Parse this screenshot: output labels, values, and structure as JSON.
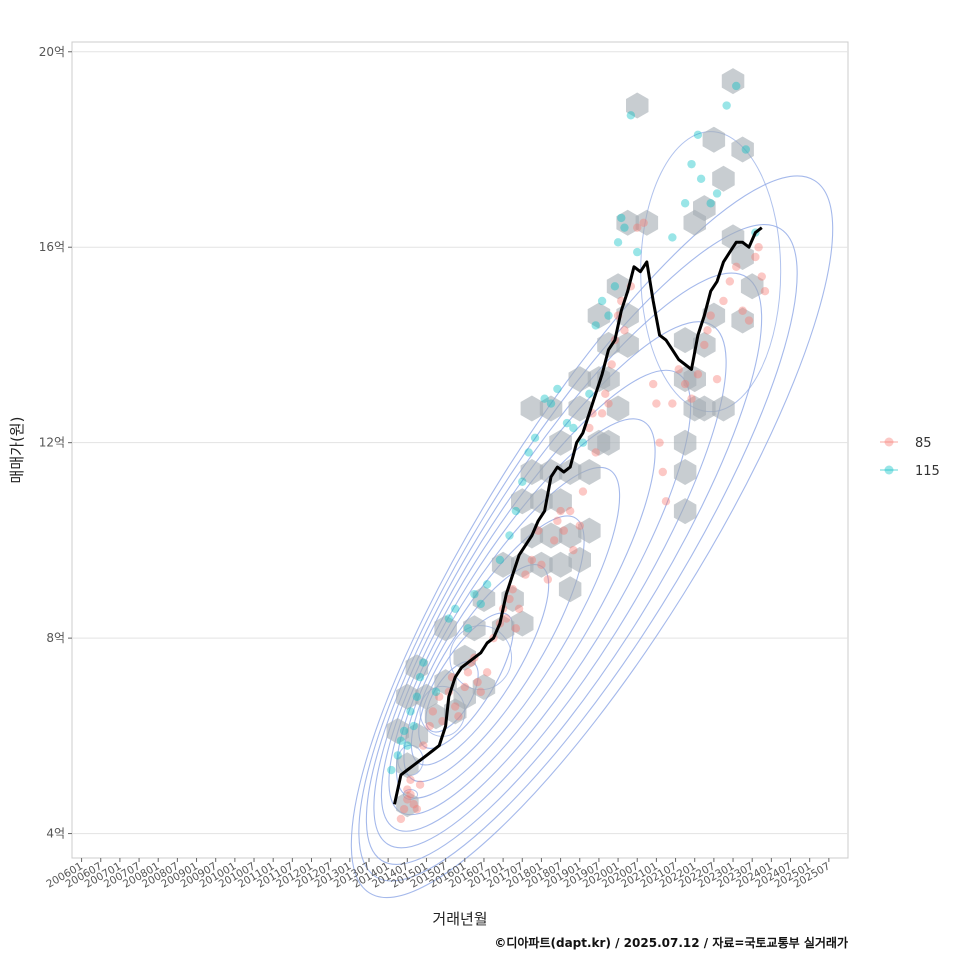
{
  "chart_data": {
    "type": "scatter",
    "xlabel": "거래년월",
    "ylabel": "매매가(원)",
    "caption": "©디아파트(dapt.kr) / 2025.07.12 / 자료=국토교통부 실거래가",
    "y_ticks": [
      {
        "value": 4,
        "label": "4억"
      },
      {
        "value": 8,
        "label": "8억"
      },
      {
        "value": 12,
        "label": "12억"
      },
      {
        "value": 16,
        "label": "16억"
      },
      {
        "value": 20,
        "label": "20억"
      }
    ],
    "ylim": [
      3.5,
      20.2
    ],
    "x_ticks": [
      "200601",
      "200607",
      "200701",
      "200707",
      "200801",
      "200807",
      "200901",
      "200907",
      "201001",
      "201007",
      "201101",
      "201107",
      "201201",
      "201207",
      "201301",
      "201307",
      "201401",
      "201407",
      "201501",
      "201507",
      "201601",
      "201607",
      "201701",
      "201707",
      "201801",
      "201807",
      "201901",
      "201907",
      "202001",
      "202007",
      "202101",
      "202107",
      "202201",
      "202207",
      "202301",
      "202307",
      "202401",
      "202407",
      "202501",
      "202507"
    ],
    "x_range": [
      "2005-10",
      "2026-01"
    ],
    "grid": true,
    "legend_position": "right",
    "legend": [
      {
        "name": "85",
        "color": "#F8766D"
      },
      {
        "name": "115",
        "color": "#00BFC4"
      }
    ],
    "colors": {
      "hexbin": "#a3abb3",
      "density_contour": "#8fa8e6",
      "median_line": "#000000",
      "grid": "#e3e3e3",
      "panel_border": "#cccccc"
    },
    "median_line": [
      [
        "2014-03",
        4.6
      ],
      [
        "2014-05",
        5.2
      ],
      [
        "2014-07",
        5.3
      ],
      [
        "2014-09",
        5.4
      ],
      [
        "2014-11",
        5.5
      ],
      [
        "2015-01",
        5.6
      ],
      [
        "2015-03",
        5.7
      ],
      [
        "2015-05",
        5.8
      ],
      [
        "2015-07",
        6.2
      ],
      [
        "2015-08",
        6.8
      ],
      [
        "2015-10",
        7.2
      ],
      [
        "2015-12",
        7.4
      ],
      [
        "2016-02",
        7.5
      ],
      [
        "2016-04",
        7.6
      ],
      [
        "2016-06",
        7.7
      ],
      [
        "2016-08",
        7.9
      ],
      [
        "2016-10",
        8.0
      ],
      [
        "2016-12",
        8.3
      ],
      [
        "2017-02",
        8.9
      ],
      [
        "2017-04",
        9.3
      ],
      [
        "2017-06",
        9.7
      ],
      [
        "2017-08",
        9.9
      ],
      [
        "2017-10",
        10.1
      ],
      [
        "2017-12",
        10.4
      ],
      [
        "2018-02",
        10.6
      ],
      [
        "2018-04",
        11.3
      ],
      [
        "2018-06",
        11.5
      ],
      [
        "2018-08",
        11.4
      ],
      [
        "2018-10",
        11.5
      ],
      [
        "2018-12",
        12.0
      ],
      [
        "2019-02",
        12.2
      ],
      [
        "2019-04",
        12.6
      ],
      [
        "2019-06",
        13.0
      ],
      [
        "2019-08",
        13.4
      ],
      [
        "2019-10",
        13.9
      ],
      [
        "2019-12",
        14.1
      ],
      [
        "2020-02",
        14.7
      ],
      [
        "2020-04",
        15.1
      ],
      [
        "2020-06",
        15.6
      ],
      [
        "2020-08",
        15.5
      ],
      [
        "2020-10",
        15.7
      ],
      [
        "2020-12",
        14.9
      ],
      [
        "2021-02",
        14.2
      ],
      [
        "2021-04",
        14.1
      ],
      [
        "2021-06",
        13.9
      ],
      [
        "2021-08",
        13.7
      ],
      [
        "2021-10",
        13.6
      ],
      [
        "2021-12",
        13.5
      ],
      [
        "2022-02",
        14.2
      ],
      [
        "2022-04",
        14.6
      ],
      [
        "2022-06",
        15.1
      ],
      [
        "2022-08",
        15.3
      ],
      [
        "2022-10",
        15.7
      ],
      [
        "2022-12",
        15.9
      ],
      [
        "2023-02",
        16.1
      ],
      [
        "2023-04",
        16.1
      ],
      [
        "2023-06",
        16.0
      ],
      [
        "2023-08",
        16.3
      ],
      [
        "2023-10",
        16.4
      ]
    ],
    "series": [
      {
        "name": "85",
        "points": [
          [
            "2014-05",
            4.3
          ],
          [
            "2014-06",
            4.5
          ],
          [
            "2014-07",
            4.7
          ],
          [
            "2014-07",
            4.9
          ],
          [
            "2014-08",
            5.1
          ],
          [
            "2014-08",
            4.8
          ],
          [
            "2014-09",
            4.6
          ],
          [
            "2014-10",
            4.5
          ],
          [
            "2014-11",
            5.0
          ],
          [
            "2014-12",
            5.8
          ],
          [
            "2015-02",
            6.2
          ],
          [
            "2015-03",
            6.5
          ],
          [
            "2015-05",
            6.8
          ],
          [
            "2015-06",
            6.3
          ],
          [
            "2015-08",
            6.9
          ],
          [
            "2015-09",
            7.2
          ],
          [
            "2015-10",
            6.6
          ],
          [
            "2015-11",
            6.4
          ],
          [
            "2016-01",
            7.0
          ],
          [
            "2016-02",
            7.3
          ],
          [
            "2016-03",
            7.5
          ],
          [
            "2016-04",
            7.6
          ],
          [
            "2016-05",
            7.1
          ],
          [
            "2016-06",
            6.9
          ],
          [
            "2016-08",
            7.3
          ],
          [
            "2016-10",
            8.0
          ],
          [
            "2016-12",
            8.3
          ],
          [
            "2017-01",
            8.6
          ],
          [
            "2017-02",
            8.4
          ],
          [
            "2017-03",
            8.8
          ],
          [
            "2017-04",
            9.0
          ],
          [
            "2017-05",
            8.2
          ],
          [
            "2017-06",
            8.6
          ],
          [
            "2017-08",
            9.3
          ],
          [
            "2017-10",
            9.6
          ],
          [
            "2017-12",
            10.2
          ],
          [
            "2018-01",
            9.5
          ],
          [
            "2018-03",
            9.2
          ],
          [
            "2018-05",
            10.0
          ],
          [
            "2018-06",
            10.4
          ],
          [
            "2018-07",
            10.6
          ],
          [
            "2018-08",
            10.2
          ],
          [
            "2018-10",
            10.6
          ],
          [
            "2018-11",
            9.8
          ],
          [
            "2019-01",
            10.3
          ],
          [
            "2019-02",
            11.0
          ],
          [
            "2019-04",
            12.3
          ],
          [
            "2019-05",
            12.6
          ],
          [
            "2019-06",
            11.8
          ],
          [
            "2019-08",
            12.6
          ],
          [
            "2019-09",
            13.0
          ],
          [
            "2019-10",
            12.8
          ],
          [
            "2019-11",
            13.6
          ],
          [
            "2019-12",
            14.1
          ],
          [
            "2020-01",
            14.6
          ],
          [
            "2020-02",
            14.9
          ],
          [
            "2020-03",
            14.3
          ],
          [
            "2020-05",
            15.2
          ],
          [
            "2020-07",
            16.4
          ],
          [
            "2020-09",
            16.5
          ],
          [
            "2020-12",
            13.2
          ],
          [
            "2021-01",
            12.8
          ],
          [
            "2021-02",
            12.0
          ],
          [
            "2021-03",
            11.4
          ],
          [
            "2021-04",
            10.8
          ],
          [
            "2021-06",
            12.8
          ],
          [
            "2021-08",
            13.5
          ],
          [
            "2021-10",
            13.2
          ],
          [
            "2021-12",
            12.9
          ],
          [
            "2022-02",
            13.4
          ],
          [
            "2022-04",
            14.0
          ],
          [
            "2022-05",
            14.3
          ],
          [
            "2022-06",
            14.6
          ],
          [
            "2022-08",
            13.3
          ],
          [
            "2022-10",
            14.9
          ],
          [
            "2022-12",
            15.3
          ],
          [
            "2023-02",
            15.6
          ],
          [
            "2023-04",
            14.7
          ],
          [
            "2023-06",
            14.5
          ],
          [
            "2023-08",
            15.8
          ],
          [
            "2023-09",
            16.0
          ],
          [
            "2023-10",
            15.4
          ],
          [
            "2023-11",
            15.1
          ]
        ]
      },
      {
        "name": "115",
        "points": [
          [
            "2014-02",
            5.3
          ],
          [
            "2014-04",
            5.6
          ],
          [
            "2014-05",
            5.9
          ],
          [
            "2014-06",
            6.1
          ],
          [
            "2014-07",
            5.8
          ],
          [
            "2014-08",
            6.5
          ],
          [
            "2014-09",
            6.2
          ],
          [
            "2014-10",
            6.8
          ],
          [
            "2014-11",
            7.2
          ],
          [
            "2014-12",
            7.5
          ],
          [
            "2015-04",
            6.9
          ],
          [
            "2015-08",
            8.4
          ],
          [
            "2015-10",
            8.6
          ],
          [
            "2016-02",
            8.2
          ],
          [
            "2016-04",
            8.9
          ],
          [
            "2016-06",
            8.7
          ],
          [
            "2016-08",
            9.1
          ],
          [
            "2016-12",
            9.6
          ],
          [
            "2017-03",
            10.1
          ],
          [
            "2017-05",
            10.6
          ],
          [
            "2017-07",
            11.2
          ],
          [
            "2017-09",
            11.8
          ],
          [
            "2017-11",
            12.1
          ],
          [
            "2018-02",
            12.9
          ],
          [
            "2018-04",
            12.8
          ],
          [
            "2018-06",
            13.1
          ],
          [
            "2018-09",
            12.4
          ],
          [
            "2018-11",
            12.3
          ],
          [
            "2019-02",
            12.0
          ],
          [
            "2019-04",
            13.0
          ],
          [
            "2019-06",
            14.4
          ],
          [
            "2019-08",
            14.9
          ],
          [
            "2019-10",
            14.6
          ],
          [
            "2019-12",
            15.2
          ],
          [
            "2020-01",
            16.1
          ],
          [
            "2020-02",
            16.6
          ],
          [
            "2020-03",
            16.4
          ],
          [
            "2020-05",
            18.7
          ],
          [
            "2020-07",
            15.9
          ],
          [
            "2021-06",
            16.2
          ],
          [
            "2021-10",
            16.9
          ],
          [
            "2021-12",
            17.7
          ],
          [
            "2022-02",
            18.3
          ],
          [
            "2022-03",
            17.4
          ],
          [
            "2022-06",
            16.9
          ],
          [
            "2022-08",
            17.1
          ],
          [
            "2022-11",
            18.9
          ],
          [
            "2023-02",
            19.3
          ],
          [
            "2023-05",
            18.0
          ],
          [
            "2023-08",
            16.3
          ]
        ]
      }
    ],
    "hexbins": [
      [
        "2014-06",
        4.6
      ],
      [
        "2014-06",
        5.4
      ],
      [
        "2014-03",
        6.1
      ],
      [
        "2014-09",
        6.0
      ],
      [
        "2014-06",
        6.8
      ],
      [
        "2015-00",
        6.8
      ],
      [
        "2014-09",
        7.4
      ],
      [
        "2015-03",
        6.4
      ],
      [
        "2015-06",
        7.1
      ],
      [
        "2015-09",
        6.5
      ],
      [
        "2016-00",
        6.8
      ],
      [
        "2015-06",
        8.2
      ],
      [
        "2016-00",
        7.6
      ],
      [
        "2016-03",
        8.2
      ],
      [
        "2016-06",
        7.0
      ],
      [
        "2016-06",
        8.8
      ],
      [
        "2017-00",
        8.2
      ],
      [
        "2017-00",
        9.5
      ],
      [
        "2017-03",
        8.8
      ],
      [
        "2017-06",
        8.3
      ],
      [
        "2017-06",
        9.5
      ],
      [
        "2017-06",
        10.8
      ],
      [
        "2017-09",
        10.1
      ],
      [
        "2017-09",
        11.4
      ],
      [
        "2017-12",
        9.5
      ],
      [
        "2017-12",
        10.8
      ],
      [
        "2018-03",
        10.1
      ],
      [
        "2018-03",
        11.4
      ],
      [
        "2018-06",
        9.5
      ],
      [
        "2018-06",
        10.8
      ],
      [
        "2018-06",
        12.0
      ],
      [
        "2018-09",
        9.0
      ],
      [
        "2018-09",
        10.1
      ],
      [
        "2018-09",
        11.4
      ],
      [
        "2018-12",
        9.6
      ],
      [
        "2019-03",
        10.2
      ],
      [
        "2017-09",
        12.7
      ],
      [
        "2018-03",
        12.7
      ],
      [
        "2019-00",
        12.7
      ],
      [
        "2019-03",
        11.4
      ],
      [
        "2019-06",
        12.0
      ],
      [
        "2019-06",
        13.3
      ],
      [
        "2019-09",
        12.0
      ],
      [
        "2019-09",
        13.3
      ],
      [
        "2019-12",
        12.7
      ],
      [
        "2018-12",
        13.3
      ],
      [
        "2019-06",
        14.6
      ],
      [
        "2019-09",
        14.0
      ],
      [
        "2019-12",
        15.2
      ],
      [
        "2020-03",
        14.0
      ],
      [
        "2020-03",
        14.6
      ],
      [
        "2020-03",
        16.5
      ],
      [
        "2020-09",
        16.5
      ],
      [
        "2020-06",
        18.9
      ],
      [
        "2021-09",
        14.1
      ],
      [
        "2021-09",
        13.3
      ],
      [
        "2021-09",
        12.0
      ],
      [
        "2021-09",
        11.4
      ],
      [
        "2021-09",
        10.6
      ],
      [
        "2022-00",
        12.7
      ],
      [
        "2022-00",
        13.3
      ],
      [
        "2022-03",
        14.0
      ],
      [
        "2022-03",
        12.7
      ],
      [
        "2022-06",
        14.6
      ],
      [
        "2022-09",
        12.7
      ],
      [
        "2021-12",
        16.5
      ],
      [
        "2022-03",
        16.8
      ],
      [
        "2022-06",
        18.2
      ],
      [
        "2022-09",
        17.4
      ],
      [
        "2022-12",
        16.2
      ],
      [
        "2023-03",
        15.8
      ],
      [
        "2023-06",
        15.2
      ],
      [
        "2023-03",
        14.5
      ],
      [
        "2023-03",
        18.0
      ],
      [
        "2023-00",
        19.4
      ]
    ],
    "density_centers": [
      {
        "x": "2014-08",
        "y": 4.8,
        "rx": 0.5,
        "ry": 0.5
      },
      {
        "x": "2014-08",
        "y": 5.5,
        "rx": 0.9,
        "ry": 1.5
      },
      {
        "x": "2015-06",
        "y": 6.5,
        "rx": 1.6,
        "ry": 2.5
      },
      {
        "x": "2016-06",
        "y": 7.6,
        "rx": 2.2,
        "ry": 3.2
      }
    ]
  }
}
